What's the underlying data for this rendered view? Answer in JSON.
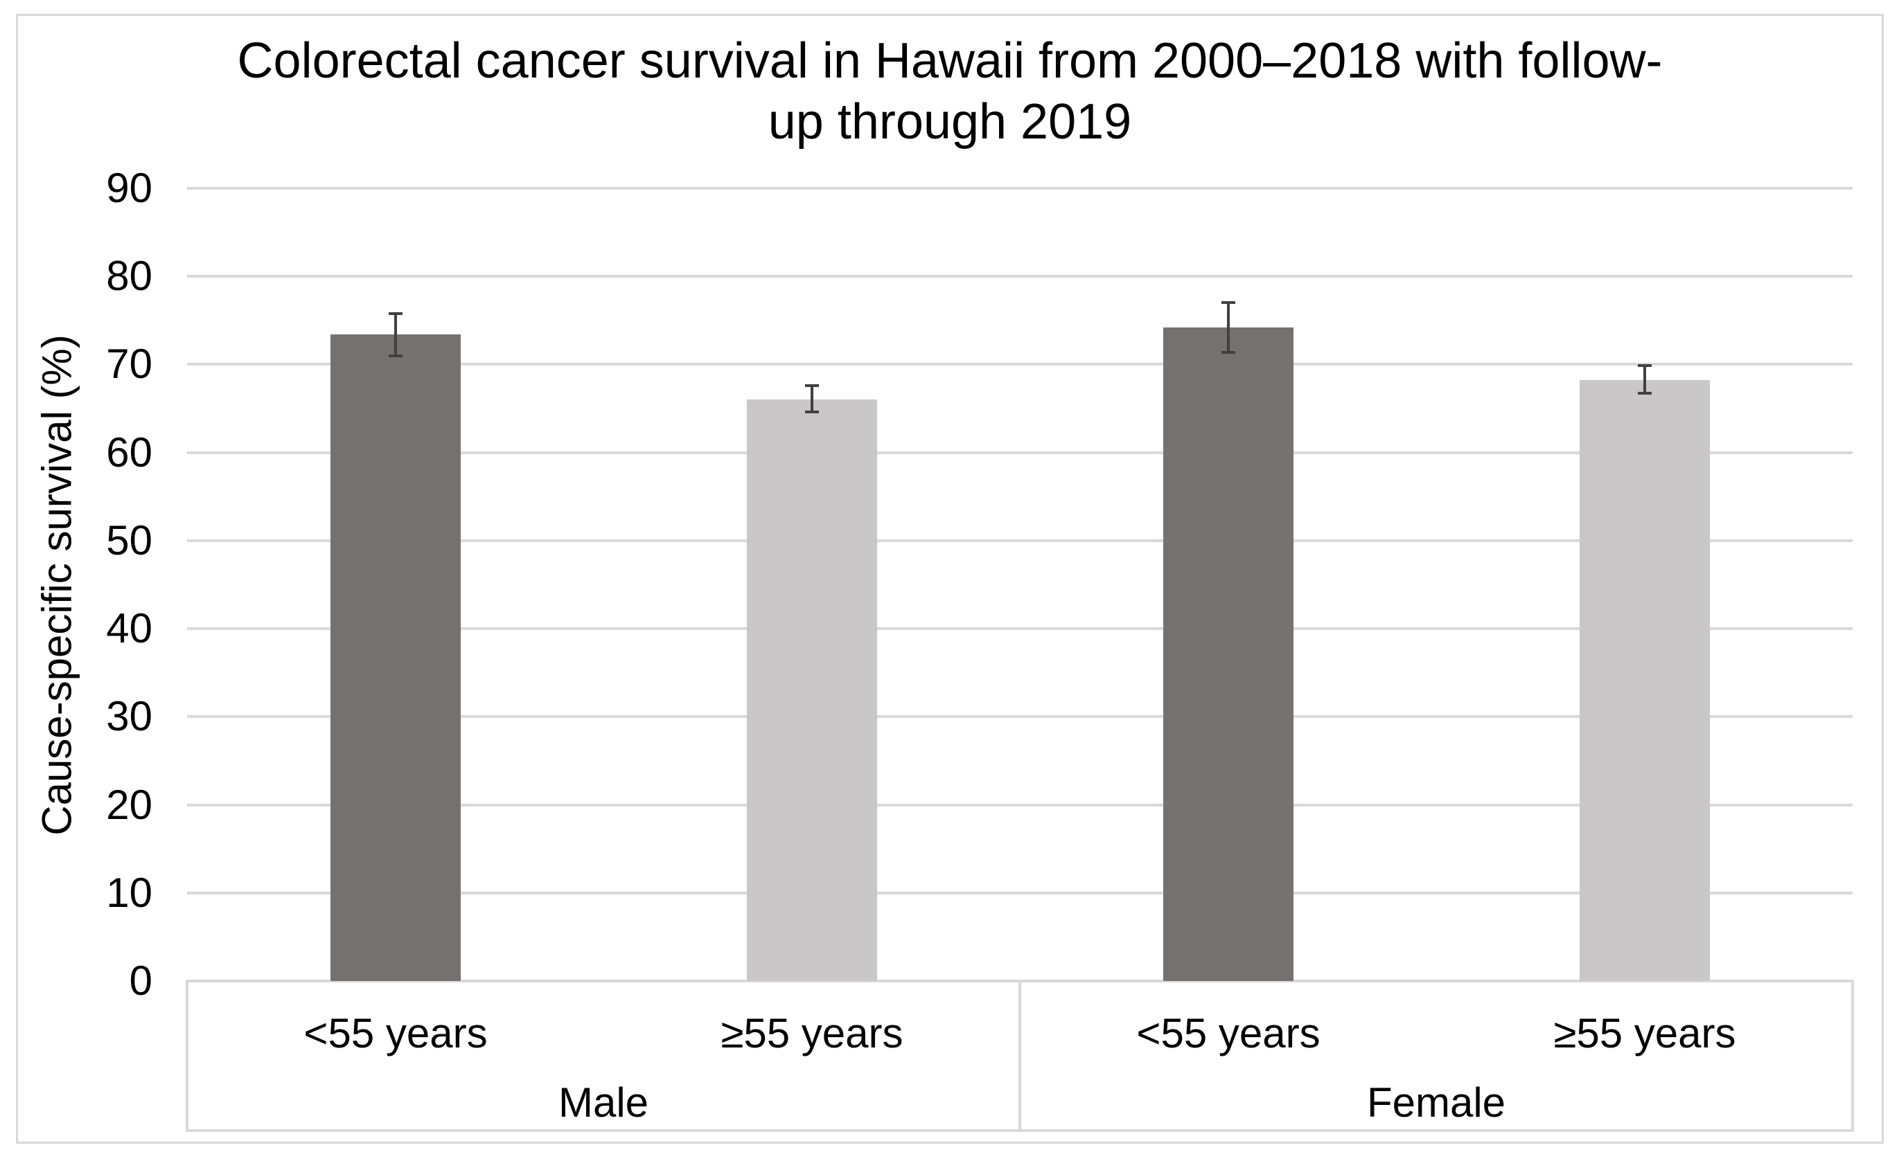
{
  "chart_data": {
    "type": "bar",
    "title": "Colorectal cancer survival in Hawaii from 2000–2018 with follow-up through 2019",
    "title_lines": [
      "Colorectal cancer survival in Hawaii from 2000–2018 with follow-",
      "up through 2019"
    ],
    "xlabel": "",
    "ylabel": "Cause-specific survival (%)",
    "ylim": [
      0,
      90
    ],
    "yticks": [
      0,
      10,
      20,
      30,
      40,
      50,
      60,
      70,
      80,
      90
    ],
    "grid": true,
    "legend": "none",
    "group_labels": [
      "Male",
      "Female"
    ],
    "groups": [
      {
        "label": "Male",
        "bars": [
          {
            "label": "<55 years",
            "value": 73.4,
            "error_low": 71.0,
            "error_high": 75.8,
            "color_key": "dark"
          },
          {
            "label": "≥55 years",
            "value": 66.0,
            "error_low": 64.6,
            "error_high": 67.6,
            "color_key": "light"
          }
        ]
      },
      {
        "label": "Female",
        "bars": [
          {
            "label": "<55 years",
            "value": 74.2,
            "error_low": 71.4,
            "error_high": 77.0,
            "color_key": "dark"
          },
          {
            "label": "≥55 years",
            "value": 68.2,
            "error_low": 66.7,
            "error_high": 69.9,
            "color_key": "light"
          }
        ]
      }
    ],
    "values": [
      73.4,
      66.0,
      74.2,
      68.2
    ],
    "error_low": [
      71.0,
      64.6,
      71.4,
      66.7
    ],
    "error_high": [
      75.8,
      67.6,
      77.0,
      69.9
    ],
    "colors": {
      "dark_bar": "#767171",
      "light_bar": "#c9c7c7",
      "gridline": "#d9d9d9",
      "axis_line": "#d9d9d9",
      "chart_border": "#d9d9d9",
      "error_bar": "#404040",
      "text": "#000000",
      "background": "#ffffff"
    }
  }
}
